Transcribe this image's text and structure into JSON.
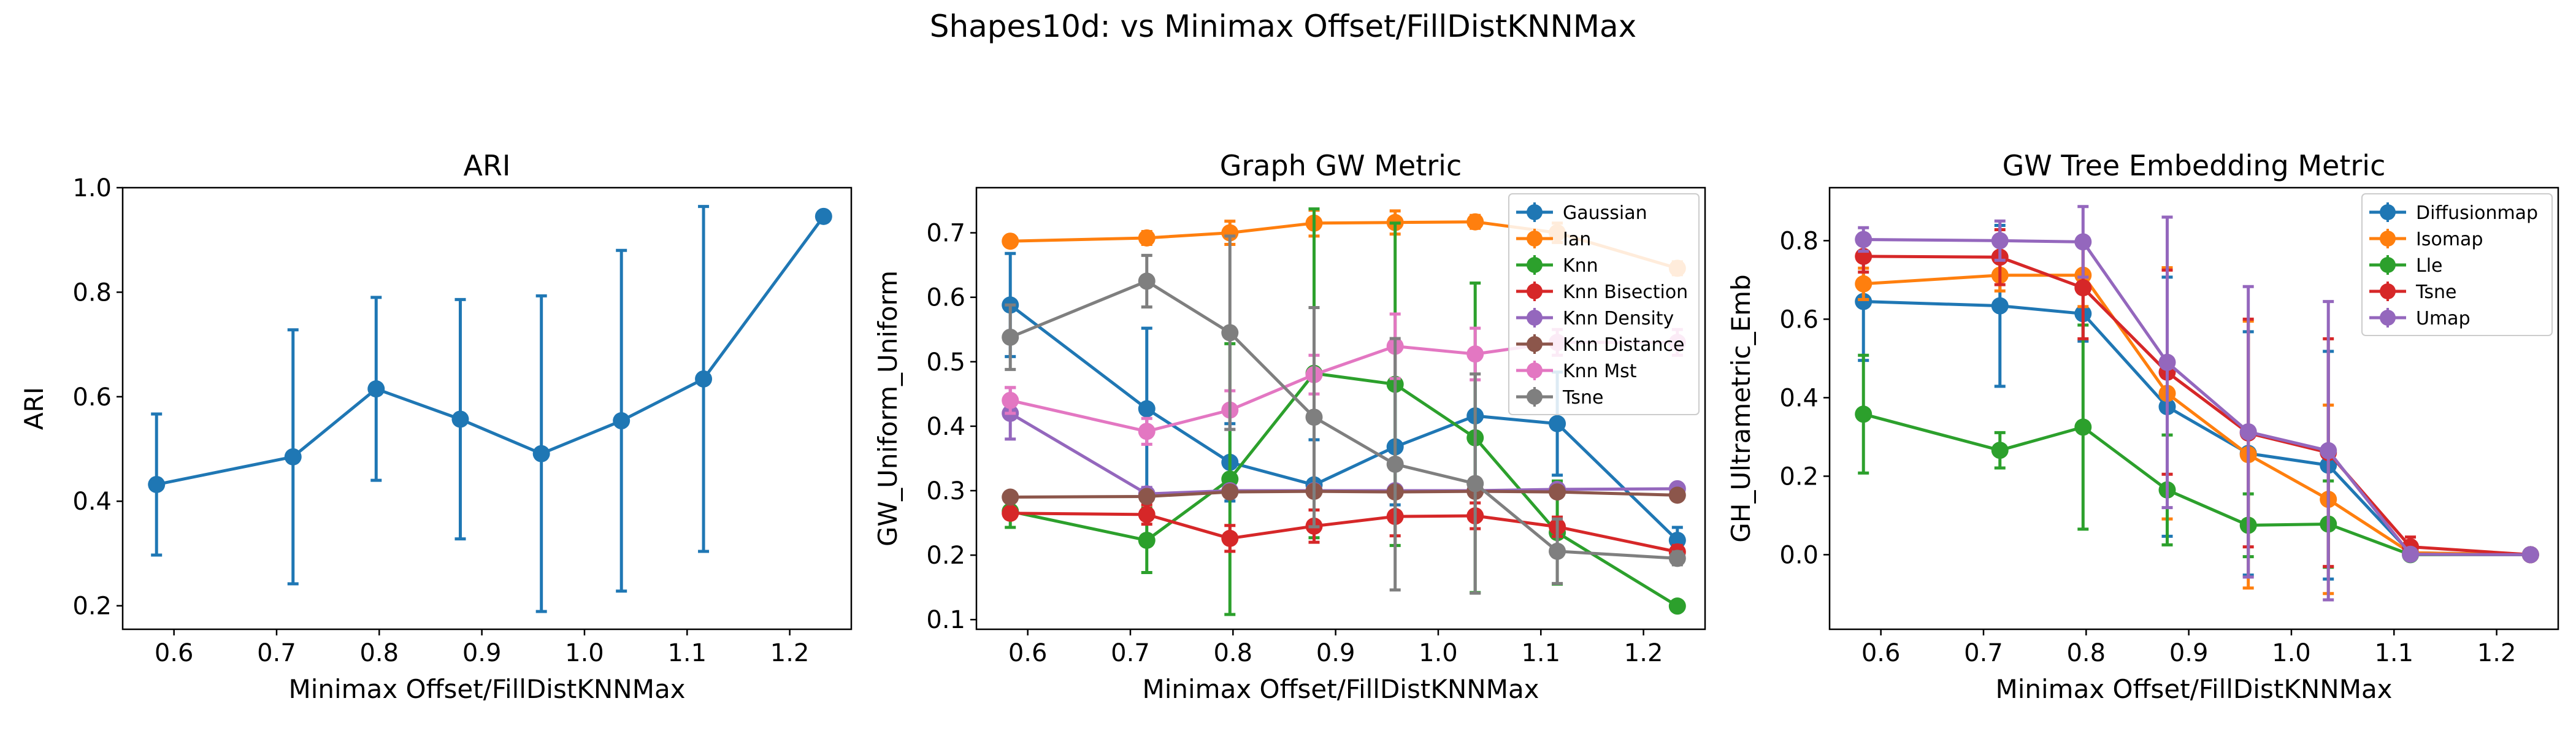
{
  "suptitle": "Shapes10d: vs Minimax Offset/FillDistKNNMax",
  "chart_data": [
    {
      "type": "line",
      "title": "ARI",
      "xlabel": "Minimax Offset/FillDistKNNMax",
      "ylabel": "ARI",
      "xlim": [
        0.55,
        1.26
      ],
      "ylim": [
        0.155,
        1.0
      ],
      "xticks": [
        0.6,
        0.7,
        0.8,
        0.9,
        1.0,
        1.1,
        1.2
      ],
      "yticks": [
        0.2,
        0.4,
        0.6,
        0.8,
        1.0
      ],
      "grid": false,
      "x": [
        0.583,
        0.716,
        0.797,
        0.879,
        0.958,
        1.036,
        1.116,
        1.233
      ],
      "series": [
        {
          "color": "#1f77b4",
          "values": [
            0.432,
            0.485,
            0.615,
            0.557,
            0.491,
            0.554,
            0.634,
            0.945
          ],
          "errors": [
            0.135,
            0.243,
            0.175,
            0.229,
            0.302,
            0.326,
            0.33,
            0.0
          ]
        }
      ]
    },
    {
      "type": "line",
      "title": "Graph GW Metric",
      "xlabel": "Minimax Offset/FillDistKNNMax",
      "ylabel": "GW_Uniform_Uniform",
      "xlim": [
        0.55,
        1.26
      ],
      "ylim": [
        0.085,
        0.77
      ],
      "xticks": [
        0.6,
        0.7,
        0.8,
        0.9,
        1.0,
        1.1,
        1.2
      ],
      "yticks": [
        0.1,
        0.2,
        0.3,
        0.4,
        0.5,
        0.6,
        0.7
      ],
      "grid": false,
      "legend_position": "top-right",
      "x": [
        0.583,
        0.716,
        0.797,
        0.879,
        0.958,
        1.036,
        1.116,
        1.233
      ],
      "series": [
        {
          "name": "Gaussian",
          "color": "#1f77b4",
          "values": [
            0.588,
            0.427,
            0.344,
            0.309,
            0.368,
            0.416,
            0.404,
            0.223
          ],
          "errors": [
            0.08,
            0.125,
            0.06,
            0.07,
            0.09,
            0.1,
            0.08,
            0.02
          ]
        },
        {
          "name": "Ian",
          "color": "#ff7f0e",
          "values": [
            0.687,
            0.692,
            0.7,
            0.715,
            0.716,
            0.717,
            0.7,
            0.645
          ],
          "errors": [
            0.006,
            0.01,
            0.018,
            0.02,
            0.018,
            0.01,
            0.015,
            0.01
          ]
        },
        {
          "name": "Knn",
          "color": "#2ca02c",
          "values": [
            0.268,
            0.223,
            0.318,
            0.482,
            0.465,
            0.382,
            0.235,
            0.121
          ],
          "errors": [
            0.025,
            0.05,
            0.21,
            0.255,
            0.25,
            0.24,
            0.08,
            0.005
          ]
        },
        {
          "name": "Knn Bisection",
          "color": "#d62728",
          "values": [
            0.265,
            0.263,
            0.226,
            0.245,
            0.26,
            0.261,
            0.244,
            0.205
          ],
          "errors": [
            0.008,
            0.015,
            0.02,
            0.025,
            0.03,
            0.02,
            0.015,
            0.01
          ]
        },
        {
          "name": "Knn Density",
          "color": "#9467bd",
          "values": [
            0.42,
            0.295,
            0.3,
            0.3,
            0.3,
            0.3,
            0.302,
            0.303
          ],
          "errors": [
            0.04,
            0.01,
            0.008,
            0.008,
            0.008,
            0.008,
            0.008,
            0.008
          ]
        },
        {
          "name": "Knn Distance",
          "color": "#8c564b",
          "values": [
            0.29,
            0.291,
            0.298,
            0.299,
            0.298,
            0.299,
            0.298,
            0.293
          ],
          "errors": [
            0.006,
            0.006,
            0.006,
            0.006,
            0.006,
            0.006,
            0.006,
            0.006
          ]
        },
        {
          "name": "Knn Mst",
          "color": "#e377c2",
          "values": [
            0.44,
            0.392,
            0.425,
            0.48,
            0.524,
            0.512,
            0.53,
            0.53
          ],
          "errors": [
            0.02,
            0.02,
            0.03,
            0.03,
            0.05,
            0.04,
            0.02,
            0.02
          ]
        },
        {
          "name": "Tsne",
          "color": "#7f7f7f",
          "values": [
            0.538,
            0.625,
            0.545,
            0.414,
            0.341,
            0.311,
            0.206,
            0.195
          ],
          "errors": [
            0.05,
            0.04,
            0.15,
            0.17,
            0.195,
            0.17,
            0.05,
            0.01
          ]
        }
      ]
    },
    {
      "type": "line",
      "title": "GW Tree Embedding Metric",
      "xlabel": "Minimax Offset/FillDistKNNMax",
      "ylabel": "GH_Ultrametric_Emb",
      "xlim": [
        0.55,
        1.26
      ],
      "ylim": [
        -0.19,
        0.935
      ],
      "xticks": [
        0.6,
        0.7,
        0.8,
        0.9,
        1.0,
        1.1,
        1.2
      ],
      "yticks": [
        0.0,
        0.2,
        0.4,
        0.6,
        0.8
      ],
      "grid": false,
      "legend_position": "top-right",
      "x": [
        0.583,
        0.716,
        0.797,
        0.879,
        0.958,
        1.036,
        1.116,
        1.233
      ],
      "series": [
        {
          "name": "Diffusionmap",
          "color": "#1f77b4",
          "values": [
            0.645,
            0.634,
            0.614,
            0.377,
            0.258,
            0.228,
            0.005,
            0.0
          ],
          "errors": [
            0.15,
            0.205,
            0.07,
            0.33,
            0.31,
            0.29,
            0.01,
            0.0
          ]
        },
        {
          "name": "Isomap",
          "color": "#ff7f0e",
          "values": [
            0.69,
            0.712,
            0.712,
            0.411,
            0.255,
            0.141,
            0.005,
            0.0
          ],
          "errors": [
            0.04,
            0.04,
            0.08,
            0.32,
            0.34,
            0.24,
            0.01,
            0.0
          ]
        },
        {
          "name": "Lle",
          "color": "#2ca02c",
          "values": [
            0.358,
            0.266,
            0.325,
            0.165,
            0.075,
            0.078,
            0.0,
            0.0
          ],
          "errors": [
            0.15,
            0.045,
            0.26,
            0.14,
            0.08,
            0.11,
            0.0,
            0.0
          ]
        },
        {
          "name": "Tsne",
          "color": "#d62728",
          "values": [
            0.76,
            0.758,
            0.68,
            0.465,
            0.31,
            0.26,
            0.02,
            0.0
          ],
          "errors": [
            0.04,
            0.07,
            0.13,
            0.26,
            0.29,
            0.29,
            0.025,
            0.0
          ]
        },
        {
          "name": "Umap",
          "color": "#9467bd",
          "values": [
            0.803,
            0.8,
            0.797,
            0.49,
            0.313,
            0.265,
            0.001,
            0.0
          ],
          "errors": [
            0.03,
            0.05,
            0.09,
            0.37,
            0.37,
            0.38,
            0.005,
            0.0
          ]
        }
      ]
    }
  ]
}
